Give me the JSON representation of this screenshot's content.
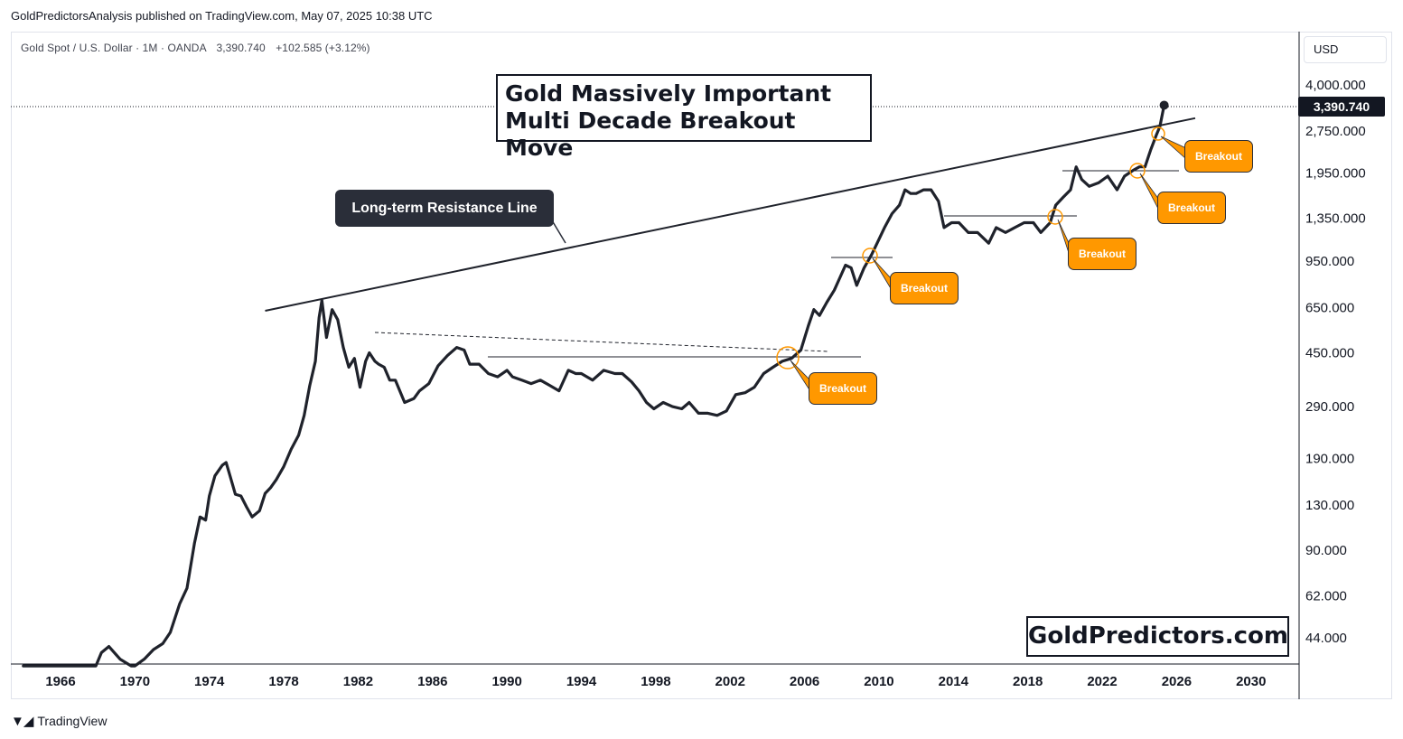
{
  "credit": "GoldPredictorsAnalysis published on TradingView.com, May 07, 2025 10:38 UTC",
  "symbol": {
    "name": "Gold Spot / U.S. Dollar",
    "timeframe": "1M",
    "broker": "OANDA",
    "last": "3,390.740",
    "change": "+102.585 (+3.12%)"
  },
  "currency": "USD",
  "current_price_tag": "3,390.740",
  "title_line1": "Gold Massively Important",
  "title_line2": "Multi Decade Breakout Move",
  "resistance_label": "Long-term Resistance Line",
  "brand": "GoldPredictors.com",
  "footer_logo": "TradingView",
  "breakout_label": "Breakout",
  "colors": {
    "line": "#1f222b",
    "breakout_bg": "#ff9800",
    "label_bg": "#2a2e39",
    "tag_bg": "#131722"
  },
  "chart_data": {
    "type": "line",
    "scale": "log",
    "series": [
      {
        "name": "Gold Spot / U.S. Dollar",
        "x": [
          1964.0,
          1967.9,
          1968.2,
          1968.6,
          1969.2,
          1969.8,
          1970.0,
          1970.5,
          1971.0,
          1971.5,
          1971.9,
          1972.4,
          1972.8,
          1973.2,
          1973.5,
          1973.8,
          1974.0,
          1974.3,
          1974.7,
          1974.9,
          1975.1,
          1975.4,
          1975.7,
          1976.0,
          1976.3,
          1976.7,
          1977.0,
          1977.3,
          1977.6,
          1978.0,
          1978.4,
          1978.8,
          1979.1,
          1979.4,
          1979.7,
          1979.9,
          1980.05,
          1980.3,
          1980.6,
          1980.9,
          1981.2,
          1981.5,
          1981.8,
          1982.1,
          1982.4,
          1982.6,
          1982.9,
          1983.1,
          1983.4,
          1983.7,
          1984.0,
          1984.5,
          1985.0,
          1985.3,
          1985.8,
          1986.3,
          1986.8,
          1987.3,
          1987.7,
          1988.0,
          1988.5,
          1989.0,
          1989.5,
          1990.0,
          1990.3,
          1990.8,
          1991.3,
          1991.8,
          1992.3,
          1992.8,
          1993.3,
          1993.7,
          1994.0,
          1994.6,
          1995.2,
          1995.8,
          1996.2,
          1996.7,
          1997.1,
          1997.5,
          1997.9,
          1998.4,
          1998.9,
          1999.4,
          1999.8,
          2000.3,
          2000.8,
          2001.3,
          2001.8,
          2002.3,
          2002.8,
          2003.3,
          2003.8,
          2004.3,
          2004.8,
          2005.3,
          2005.8,
          2006.2,
          2006.5,
          2006.8,
          2007.2,
          2007.6,
          2007.9,
          2008.2,
          2008.5,
          2008.8,
          2009.2,
          2009.6,
          2009.9,
          2010.3,
          2010.7,
          2011.1,
          2011.4,
          2011.7,
          2012.0,
          2012.4,
          2012.8,
          2013.2,
          2013.5,
          2013.9,
          2014.3,
          2014.8,
          2015.3,
          2015.9,
          2016.3,
          2016.8,
          2017.3,
          2017.8,
          2018.3,
          2018.7,
          2019.2,
          2019.5,
          2019.9,
          2020.3,
          2020.6,
          2020.9,
          2021.3,
          2021.8,
          2022.3,
          2022.8,
          2023.2,
          2023.7,
          2024.0,
          2024.3,
          2024.6,
          2024.9,
          2025.1,
          2025.33
        ],
        "values": [
          35,
          35,
          39,
          41,
          37,
          35,
          35,
          37,
          40,
          42,
          46,
          58,
          66,
          95,
          118,
          115,
          140,
          165,
          180,
          184,
          166,
          142,
          140,
          128,
          118,
          124,
          143,
          150,
          160,
          178,
          205,
          230,
          270,
          345,
          420,
          600,
          690,
          510,
          640,
          590,
          470,
          400,
          430,
          340,
          420,
          450,
          420,
          410,
          400,
          360,
          360,
          300,
          310,
          330,
          350,
          405,
          440,
          470,
          460,
          410,
          410,
          380,
          370,
          390,
          370,
          360,
          350,
          360,
          345,
          330,
          390,
          380,
          380,
          360,
          390,
          380,
          380,
          355,
          330,
          300,
          285,
          300,
          290,
          285,
          300,
          275,
          275,
          270,
          280,
          320,
          325,
          340,
          380,
          400,
          420,
          430,
          460,
          560,
          640,
          610,
          680,
          750,
          830,
          920,
          900,
          780,
          900,
          1000,
          1100,
          1250,
          1400,
          1500,
          1700,
          1650,
          1650,
          1700,
          1700,
          1550,
          1250,
          1300,
          1300,
          1200,
          1200,
          1100,
          1250,
          1200,
          1250,
          1300,
          1300,
          1200,
          1300,
          1500,
          1600,
          1700,
          2050,
          1850,
          1750,
          1800,
          1900,
          1700,
          1900,
          2000,
          2050,
          2050,
          2350,
          2650,
          2850,
          3390
        ]
      }
    ],
    "annotations": [
      {
        "type": "resistance_line",
        "label": "Long-term Resistance Line",
        "x": [
          1977.0,
          2027.0
        ],
        "y": [
          634,
          3050
        ]
      },
      {
        "type": "breakout",
        "label": "Breakout",
        "x": 2005.2
      },
      {
        "type": "breakout",
        "label": "Breakout",
        "x": 2009.9
      },
      {
        "type": "breakout",
        "label": "Breakout",
        "x": 2019.5
      },
      {
        "type": "breakout",
        "label": "Breakout",
        "x": 2023.9
      },
      {
        "type": "breakout",
        "label": "Breakout",
        "x": 2024.9
      }
    ],
    "x_ticks": [
      "1966",
      "1970",
      "1974",
      "1978",
      "1982",
      "1986",
      "1990",
      "1994",
      "1998",
      "2002",
      "2006",
      "2010",
      "2014",
      "2018",
      "2022",
      "2026",
      "2030"
    ],
    "y_ticks": [
      "4,000.000",
      "2,750.000",
      "1,950.000",
      "1,350.000",
      "950.000",
      "650.000",
      "450.000",
      "290.000",
      "190.000",
      "130.000",
      "90.000",
      "62.000",
      "44.000"
    ],
    "xlim": [
      1964,
      2033
    ],
    "ylim": [
      34,
      4300
    ],
    "grid": false,
    "legend": "none"
  }
}
